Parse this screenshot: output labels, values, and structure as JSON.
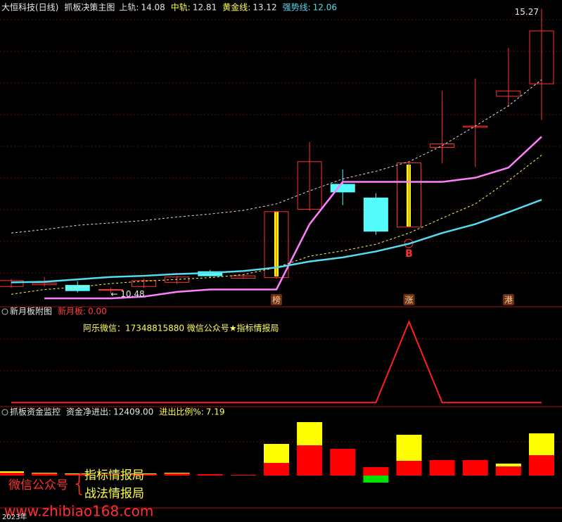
{
  "chart_data": [
    {
      "type": "candlestick",
      "name": "大恒科技(日线)",
      "title": "抓板决策主图",
      "categories": [
        null,
        null,
        null,
        null,
        null,
        null,
        null,
        null,
        null,
        null,
        null,
        null,
        null,
        null,
        null,
        null,
        null
      ],
      "open": [
        10.6,
        10.63,
        10.62,
        10.54,
        10.6,
        10.67,
        10.85,
        10.74,
        10.75,
        11.9,
        12.32,
        12.09,
        11.6,
        12.94,
        13.28,
        13.8,
        14.01
      ],
      "high": [
        10.73,
        10.76,
        10.69,
        10.58,
        10.73,
        10.78,
        10.88,
        10.8,
        11.86,
        13.03,
        12.57,
        12.17,
        12.68,
        13.89,
        14.1,
        14.61,
        15.27
      ],
      "low": [
        10.58,
        10.6,
        10.5,
        10.48,
        10.58,
        10.64,
        10.75,
        10.73,
        10.73,
        11.87,
        11.97,
        11.47,
        11.6,
        12.67,
        12.61,
        13.62,
        13.4
      ],
      "close": [
        10.7,
        10.66,
        10.53,
        10.55,
        10.7,
        10.76,
        10.78,
        10.78,
        11.86,
        12.7,
        12.19,
        11.53,
        12.68,
        13.0,
        13.3,
        13.89,
        14.9
      ],
      "up_color": "#ff3232",
      "down_color": "#54fcfc",
      "series": [
        {
          "name": "上轨:",
          "last_value": 14.08,
          "color": "#e0e0e0",
          "dash": true,
          "values": [
            11.5,
            11.56,
            11.63,
            11.67,
            11.71,
            11.77,
            11.82,
            11.88,
            11.99,
            12.21,
            12.41,
            12.54,
            12.7,
            12.97,
            13.3,
            13.64,
            14.08
          ]
        },
        {
          "name": "中轨:",
          "last_value": 12.81,
          "color": "#ffff54",
          "dash": true,
          "values": [
            10.47,
            10.55,
            10.59,
            10.65,
            10.69,
            10.72,
            10.75,
            10.8,
            10.92,
            11.11,
            11.2,
            11.31,
            11.5,
            11.75,
            11.99,
            12.38,
            12.81
          ]
        },
        {
          "name": "黄金线:",
          "last_value": 13.12,
          "color": "#ff80ff",
          "dash": false,
          "values": [
            null,
            10.4,
            10.4,
            10.4,
            10.43,
            10.51,
            10.55,
            10.55,
            10.55,
            11.65,
            12.36,
            12.36,
            12.36,
            12.36,
            12.43,
            12.6,
            13.12
          ]
        },
        {
          "name": "强势线:",
          "last_value": 12.06,
          "color": "#54dcf0",
          "dash": false,
          "values": [
            10.67,
            10.68,
            10.72,
            10.76,
            10.78,
            10.81,
            10.83,
            10.86,
            10.92,
            11.02,
            11.09,
            11.19,
            11.32,
            11.5,
            11.65,
            11.85,
            12.06
          ]
        }
      ],
      "high_label": {
        "value": 15.27,
        "label": "15.27"
      },
      "low_label": {
        "value": 10.48,
        "label": "← 10.48"
      },
      "signals": [
        null,
        null,
        null,
        null,
        null,
        null,
        null,
        null,
        "榜",
        null,
        null,
        null,
        "涨",
        null,
        null,
        "港",
        null
      ],
      "buy_signals": [
        null,
        null,
        null,
        null,
        null,
        null,
        null,
        null,
        null,
        null,
        null,
        null,
        "B",
        null,
        null,
        null,
        null
      ],
      "ylim": [
        10.26,
        15.42
      ]
    },
    {
      "type": "line",
      "title": "新月板附图",
      "categories": [
        null,
        null,
        null,
        null,
        null,
        null,
        null,
        null,
        null,
        null,
        null,
        null,
        null,
        null,
        null,
        null,
        null
      ],
      "series": [
        {
          "name": "新月板:",
          "last_value": {
            "value": 0,
            "label": "0.00"
          },
          "color": "#ff2020",
          "values": [
            0,
            0,
            0,
            0,
            0,
            0,
            0,
            0,
            0,
            0,
            0,
            0,
            1,
            0,
            0,
            0,
            0
          ]
        }
      ],
      "annotation": "阿乐微信：17348815880  微信公众号★指标情报局",
      "ylim": [
        -0.05,
        1.15
      ]
    },
    {
      "type": "stacked_bar",
      "title": "抓板资金监控",
      "indicators": [
        {
          "name": "资金净进出:",
          "value": {
            "value": 12409,
            "label": "12409.00"
          },
          "color": "#e8e8e8"
        },
        {
          "name": "进出比例%:",
          "value": 7.19,
          "color": "#ffff54"
        }
      ],
      "categories": [
        null,
        null,
        null,
        null,
        null,
        null,
        null,
        null,
        null,
        null,
        null,
        null,
        null,
        null,
        null,
        null,
        null
      ],
      "series": [
        {
          "color": "#ff0000",
          "values": [
            4,
            3,
            2,
            1,
            2,
            3,
            2,
            1,
            18,
            43,
            38,
            12,
            21,
            22,
            22,
            13,
            29
          ]
        },
        {
          "color": "#ffff00",
          "values": [
            2,
            1,
            1,
            0,
            1,
            1,
            0,
            0,
            27,
            33,
            0,
            0,
            37,
            0,
            0,
            4,
            31
          ]
        },
        {
          "color": "#00e000",
          "values": [
            null,
            null,
            null,
            null,
            null,
            null,
            null,
            null,
            null,
            null,
            null,
            -10,
            null,
            null,
            null,
            null,
            null
          ]
        }
      ],
      "ylim": [
        -46,
        94
      ]
    }
  ],
  "overlay": {
    "left": "微信公众号",
    "brace": "{",
    "line1": "指标情报局",
    "line2": "战法情报局",
    "url": "www.zhibiao168.com",
    "year": "2023年"
  }
}
